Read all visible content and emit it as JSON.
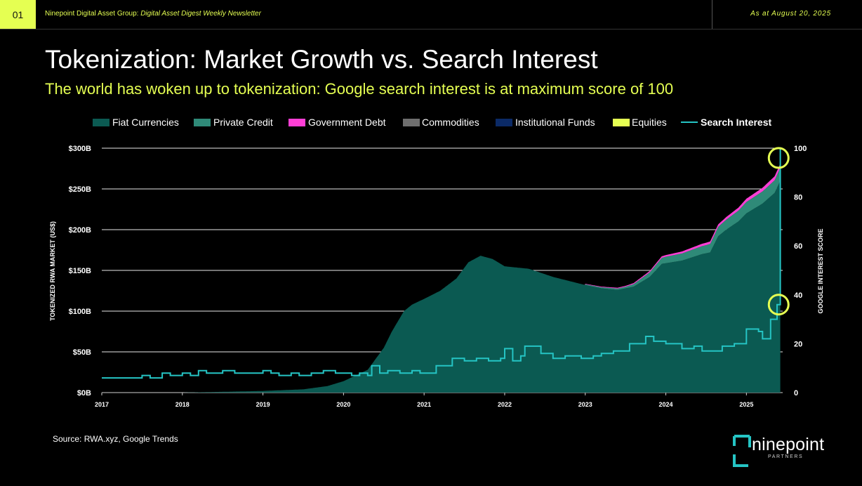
{
  "header": {
    "page_number": "01",
    "org": "Ninepoint Digital Asset Group:",
    "publication": "Digital Asset Digest Weekly Newsletter",
    "date": "As at August 20, 2025"
  },
  "title": "Tokenization: Market Growth vs. Search Interest",
  "subtitle": "The world has woken up to tokenization: Google search interest is at maximum score of 100",
  "source": "Source: RWA.xyz, Google Trends",
  "logo": {
    "name": "ninepoint",
    "tagline": "PARTNERS",
    "icon": "ninepoint-bracket-logo-icon"
  },
  "colors": {
    "accent": "#e5ff52",
    "fiat": "#0b5a52",
    "private_credit": "#2f8a78",
    "government_debt": "#ff3fd6",
    "commodities": "#6e6e6e",
    "institutional_funds": "#0b2a66",
    "equities": "#e5ff52",
    "search": "#25c4c4"
  },
  "chart_data": {
    "type": "area",
    "ylabel": "TOKENIZED RWA MARKET (US$)",
    "y2label": "GOOGLE INTEREST SCORE",
    "ylim": [
      0,
      300
    ],
    "y2lim": [
      0,
      100
    ],
    "xlim": [
      2017.0,
      2025.45
    ],
    "y_ticks": [
      "$0B",
      "$50B",
      "$100B",
      "$150B",
      "$200B",
      "$250B",
      "$300B"
    ],
    "y2_ticks": [
      "0",
      "20",
      "40",
      "60",
      "80",
      "100"
    ],
    "x_ticks": [
      "2017",
      "2018",
      "2019",
      "2020",
      "2021",
      "2022",
      "2023",
      "2024",
      "2025"
    ],
    "grid": true,
    "legend_position": "top",
    "legend": [
      "Fiat Currencies",
      "Private Credit",
      "Government Debt",
      "Commodities",
      "Institutional Funds",
      "Equities",
      "Search Interest"
    ],
    "market_series": [
      {
        "name": "Fiat Currencies",
        "x": [
          2017.0,
          2018.0,
          2018.5,
          2019.0,
          2019.5,
          2019.8,
          2020.0,
          2020.3,
          2020.5,
          2020.6,
          2020.75,
          2020.85,
          2021.0,
          2021.2,
          2021.4,
          2021.55,
          2021.7,
          2021.85,
          2022.0,
          2022.3,
          2022.6,
          2022.8,
          2023.0,
          2023.2,
          2023.4,
          2023.6,
          2023.8,
          2023.95,
          2024.2,
          2024.45,
          2024.55,
          2024.65,
          2024.75,
          2024.9,
          2025.0,
          2025.2,
          2025.35,
          2025.42
        ],
        "values": [
          0,
          0,
          1,
          2,
          4,
          8,
          14,
          28,
          55,
          75,
          100,
          108,
          115,
          125,
          140,
          160,
          168,
          164,
          155,
          152,
          142,
          137,
          132,
          128,
          126,
          130,
          142,
          158,
          162,
          170,
          172,
          192,
          200,
          210,
          220,
          232,
          245,
          260
        ]
      },
      {
        "name": "Private Credit",
        "x": [
          2023.0,
          2023.5,
          2024.0,
          2024.5,
          2024.7,
          2025.0,
          2025.42
        ],
        "values": [
          1,
          2,
          8,
          10,
          12,
          14,
          16
        ]
      },
      {
        "name": "Government Debt",
        "x": [
          2023.0,
          2023.5,
          2024.0,
          2024.5,
          2024.7,
          2025.0,
          2025.42
        ],
        "values": [
          0.5,
          1,
          2,
          3,
          3,
          4,
          5
        ]
      },
      {
        "name": "Commodities",
        "x": [
          2017.0,
          2025.42
        ],
        "values": [
          0,
          0
        ]
      },
      {
        "name": "Institutional Funds",
        "x": [
          2017.0,
          2025.42
        ],
        "values": [
          0,
          0
        ]
      },
      {
        "name": "Equities",
        "x": [
          2017.0,
          2025.42
        ],
        "values": [
          0,
          0
        ]
      }
    ],
    "search_interest": {
      "name": "Search Interest",
      "x": [
        2017.0,
        2017.5,
        2017.6,
        2017.75,
        2017.85,
        2018.0,
        2018.1,
        2018.2,
        2018.3,
        2018.5,
        2018.65,
        2019.0,
        2019.1,
        2019.2,
        2019.35,
        2019.45,
        2019.6,
        2019.75,
        2019.9,
        2020.1,
        2020.2,
        2020.3,
        2020.35,
        2020.45,
        2020.55,
        2020.7,
        2020.85,
        2020.95,
        2021.15,
        2021.35,
        2021.5,
        2021.65,
        2021.8,
        2021.95,
        2022.0,
        2022.1,
        2022.2,
        2022.25,
        2022.45,
        2022.6,
        2022.75,
        2022.95,
        2023.0,
        2023.1,
        2023.2,
        2023.35,
        2023.55,
        2023.75,
        2023.85,
        2024.0,
        2024.2,
        2024.35,
        2024.45,
        2024.7,
        2024.85,
        2025.0,
        2025.15,
        2025.2,
        2025.3,
        2025.38,
        2025.42
      ],
      "values": [
        6,
        7,
        6,
        8,
        7,
        8,
        7,
        9,
        8,
        9,
        8,
        9,
        8,
        7,
        8,
        7,
        8,
        9,
        8,
        7,
        8,
        7,
        11,
        8,
        9,
        8,
        9,
        8,
        11,
        14,
        13,
        14,
        13,
        14,
        18,
        13,
        15,
        19,
        16,
        14,
        15,
        14,
        14,
        15,
        16,
        17,
        20,
        23,
        21,
        20,
        18,
        19,
        17,
        19,
        20,
        26,
        25,
        22,
        30,
        36,
        100
      ]
    },
    "highlights": [
      {
        "x": 2025.4,
        "y2": 96
      },
      {
        "x": 2025.4,
        "y2": 36
      }
    ]
  }
}
